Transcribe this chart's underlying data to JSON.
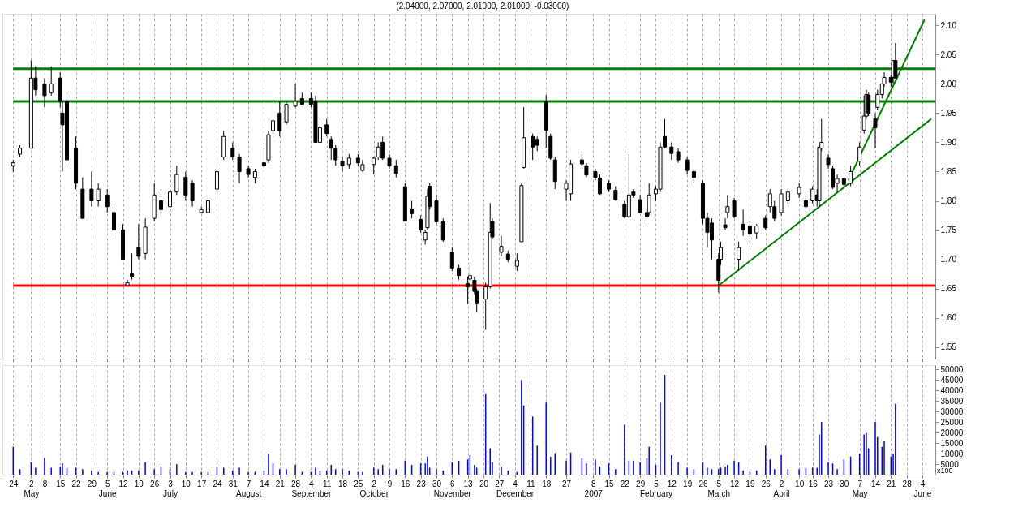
{
  "chart_data": [
    {
      "type": "candlestick",
      "title": "(2.04000, 2.07000, 2.01000, 2.01000, -0.03000)",
      "color": "#000000",
      "grid": "x",
      "tick_labels": "y",
      "xlim": [
        "2006-04-21",
        "2007-06-08"
      ],
      "ylim": [
        1.53,
        2.12
      ],
      "yticks": [
        1.55,
        {
          "value": 1.6,
          "label": "1.60"
        },
        1.65,
        {
          "value": 1.7,
          "label": "1.70"
        },
        1.75,
        {
          "value": 1.8,
          "label": "1.80"
        },
        1.85,
        {
          "value": 1.9,
          "label": "1.90"
        },
        1.95,
        {
          "value": 2.0,
          "label": "2.00"
        },
        2.05,
        {
          "value": 2.1,
          "label": "2.10"
        }
      ],
      "x": [
        "2006-04-24",
        "2006-04-27",
        "2006-05-02",
        "2006-05-04",
        "2006-05-08",
        "2006-05-11",
        "2006-05-15",
        "2006-05-16",
        "2006-05-18",
        "2006-05-22",
        "2006-05-25",
        "2006-05-29",
        "2006-06-01",
        "2006-06-05",
        "2006-06-08",
        "2006-06-12",
        "2006-06-14",
        "2006-06-16",
        "2006-06-19",
        "2006-06-22",
        "2006-06-26",
        "2006-06-29",
        "2006-07-03",
        "2006-07-06",
        "2006-07-10",
        "2006-07-13",
        "2006-07-17",
        "2006-07-20",
        "2006-07-24",
        "2006-07-27",
        "2006-07-31",
        "2006-08-03",
        "2006-08-07",
        "2006-08-10",
        "2006-08-14",
        "2006-08-16",
        "2006-08-18",
        "2006-08-21",
        "2006-08-24",
        "2006-08-28",
        "2006-08-31",
        "2006-09-04",
        "2006-09-06",
        "2006-09-08",
        "2006-09-11",
        "2006-09-13",
        "2006-09-15",
        "2006-09-18",
        "2006-09-21",
        "2006-09-25",
        "2006-09-27",
        "2006-10-02",
        "2006-10-04",
        "2006-10-06",
        "2006-10-09",
        "2006-10-12",
        "2006-10-16",
        "2006-10-19",
        "2006-10-23",
        "2006-10-25",
        "2006-10-26",
        "2006-10-27",
        "2006-10-30",
        "2006-11-02",
        "2006-11-06",
        "2006-11-09",
        "2006-11-13",
        "2006-11-14",
        "2006-11-16",
        "2006-11-17",
        "2006-11-21",
        "2006-11-23",
        "2006-11-24",
        "2006-11-28",
        "2006-12-01",
        "2006-12-05",
        "2006-12-07",
        "2006-12-08",
        "2006-12-12",
        "2006-12-14",
        "2006-12-18",
        "2006-12-20",
        "2006-12-22",
        "2006-12-27",
        "2006-12-29",
        "2007-01-03",
        "2007-01-05",
        "2007-01-09",
        "2007-01-11",
        "2007-01-15",
        "2007-01-18",
        "2007-01-22",
        "2007-01-24",
        "2007-01-26",
        "2007-01-29",
        "2007-02-01",
        "2007-02-02",
        "2007-02-05",
        "2007-02-07",
        "2007-02-09",
        "2007-02-12",
        "2007-02-15",
        "2007-02-19",
        "2007-02-22",
        "2007-02-26",
        "2007-02-28",
        "2007-03-02",
        "2007-03-05",
        "2007-03-06",
        "2007-03-08",
        "2007-03-09",
        "2007-03-12",
        "2007-03-14",
        "2007-03-16",
        "2007-03-19",
        "2007-03-22",
        "2007-03-26",
        "2007-03-28",
        "2007-03-30",
        "2007-04-02",
        "2007-04-05",
        "2007-04-10",
        "2007-04-13",
        "2007-04-16",
        "2007-04-18",
        "2007-04-19",
        "2007-04-20",
        "2007-04-23",
        "2007-04-25",
        "2007-04-27",
        "2007-04-30",
        "2007-05-03",
        "2007-05-07",
        "2007-05-09",
        "2007-05-10",
        "2007-05-11",
        "2007-05-14",
        "2007-05-15",
        "2007-05-17",
        "2007-05-18",
        "2007-05-21",
        "2007-05-22",
        "2007-05-23"
      ],
      "ohlc": [
        [
          1.86,
          1.87,
          1.85,
          1.865
        ],
        [
          1.88,
          1.895,
          1.875,
          1.89
        ],
        [
          1.89,
          2.04,
          1.89,
          2.01
        ],
        [
          2.01,
          2.03,
          1.98,
          1.99
        ],
        [
          2.0,
          2.01,
          1.96,
          1.98
        ],
        [
          1.985,
          2.03,
          1.98,
          2.0
        ],
        [
          2.01,
          2.02,
          1.96,
          1.97
        ],
        [
          1.95,
          1.97,
          1.85,
          1.93
        ],
        [
          1.97,
          1.98,
          1.86,
          1.87
        ],
        [
          1.89,
          1.91,
          1.82,
          1.83
        ],
        [
          1.82,
          1.84,
          1.77,
          1.77
        ],
        [
          1.82,
          1.85,
          1.79,
          1.8
        ],
        [
          1.8,
          1.83,
          1.79,
          1.82
        ],
        [
          1.81,
          1.82,
          1.78,
          1.79
        ],
        [
          1.78,
          1.79,
          1.74,
          1.75
        ],
        [
          1.75,
          1.76,
          1.7,
          1.7
        ],
        [
          1.655,
          1.665,
          1.655,
          1.66
        ],
        [
          1.675,
          1.71,
          1.665,
          1.67
        ],
        [
          1.72,
          1.76,
          1.7,
          1.705
        ],
        [
          1.71,
          1.77,
          1.7,
          1.755
        ],
        [
          1.77,
          1.83,
          1.765,
          1.81
        ],
        [
          1.8,
          1.82,
          1.78,
          1.785
        ],
        [
          1.79,
          1.83,
          1.78,
          1.815
        ],
        [
          1.815,
          1.86,
          1.81,
          1.845
        ],
        [
          1.84,
          1.85,
          1.8,
          1.81
        ],
        [
          1.83,
          1.835,
          1.79,
          1.8
        ],
        [
          1.78,
          1.79,
          1.78,
          1.785
        ],
        [
          1.78,
          1.81,
          1.78,
          1.8
        ],
        [
          1.82,
          1.86,
          1.81,
          1.85
        ],
        [
          1.875,
          1.92,
          1.87,
          1.91
        ],
        [
          1.89,
          1.9,
          1.87,
          1.875
        ],
        [
          1.875,
          1.88,
          1.83,
          1.85
        ],
        [
          1.855,
          1.86,
          1.84,
          1.845
        ],
        [
          1.84,
          1.855,
          1.83,
          1.85
        ],
        [
          1.865,
          1.89,
          1.855,
          1.86
        ],
        [
          1.87,
          1.92,
          1.865,
          1.913
        ],
        [
          1.92,
          1.97,
          1.91,
          1.937
        ],
        [
          1.95,
          1.97,
          1.91,
          1.92
        ],
        [
          1.935,
          1.97,
          1.93,
          1.965
        ],
        [
          1.962,
          2.0,
          1.96,
          1.97
        ],
        [
          1.975,
          1.985,
          1.965,
          1.965
        ],
        [
          1.975,
          1.985,
          1.96,
          1.965
        ],
        [
          1.97,
          1.98,
          1.9,
          1.9
        ],
        [
          1.9,
          1.935,
          1.9,
          1.925
        ],
        [
          1.93,
          1.94,
          1.91,
          1.915
        ],
        [
          1.905,
          1.91,
          1.87,
          1.89
        ],
        [
          1.89,
          1.895,
          1.86,
          1.87
        ],
        [
          1.868,
          1.875,
          1.85,
          1.86
        ],
        [
          1.862,
          1.88,
          1.855,
          1.873
        ],
        [
          1.873,
          1.88,
          1.86,
          1.865
        ],
        [
          1.852,
          1.87,
          1.85,
          1.862
        ],
        [
          1.862,
          1.875,
          1.845,
          1.873
        ],
        [
          1.875,
          1.9,
          1.87,
          1.892
        ],
        [
          1.9,
          1.91,
          1.87,
          1.873
        ],
        [
          1.873,
          1.88,
          1.855,
          1.86
        ],
        [
          1.86,
          1.87,
          1.84,
          1.847
        ],
        [
          1.824,
          1.83,
          1.765,
          1.765
        ],
        [
          1.786,
          1.8,
          1.77,
          1.778
        ],
        [
          1.768,
          1.775,
          1.745,
          1.75
        ],
        [
          1.733,
          1.75,
          1.725,
          1.746
        ],
        [
          1.754,
          1.82,
          1.75,
          1.808
        ],
        [
          1.825,
          1.83,
          1.785,
          1.79
        ],
        [
          1.8,
          1.81,
          1.76,
          1.764
        ],
        [
          1.764,
          1.77,
          1.73,
          1.733
        ],
        [
          1.712,
          1.72,
          1.68,
          1.685
        ],
        [
          1.685,
          1.69,
          1.665,
          1.672
        ],
        [
          1.658,
          1.67,
          1.623,
          1.653
        ],
        [
          1.666,
          1.69,
          1.655,
          1.672
        ],
        [
          1.664,
          1.67,
          1.64,
          1.645
        ],
        [
          1.645,
          1.65,
          1.61,
          1.624
        ],
        [
          1.632,
          1.66,
          1.579,
          1.653
        ],
        [
          1.653,
          1.796,
          1.65,
          1.746
        ],
        [
          1.765,
          1.77,
          1.735,
          1.738
        ],
        [
          1.712,
          1.74,
          1.705,
          1.722
        ],
        [
          1.709,
          1.715,
          1.695,
          1.7
        ],
        [
          1.688,
          1.71,
          1.68,
          1.698
        ],
        [
          1.73,
          1.83,
          1.73,
          1.826
        ],
        [
          1.857,
          1.96,
          1.855,
          1.908
        ],
        [
          1.91,
          1.915,
          1.87,
          1.892
        ],
        [
          1.905,
          1.91,
          1.885,
          1.895
        ],
        [
          1.969,
          1.981,
          1.89,
          1.921
        ],
        [
          1.91,
          1.915,
          1.87,
          1.873
        ],
        [
          1.87,
          1.875,
          1.82,
          1.833
        ],
        [
          1.82,
          1.835,
          1.8,
          1.83
        ],
        [
          1.812,
          1.87,
          1.8,
          1.863
        ],
        [
          1.87,
          1.88,
          1.86,
          1.863
        ],
        [
          1.86,
          1.865,
          1.84,
          1.844
        ],
        [
          1.85,
          1.855,
          1.835,
          1.84
        ],
        [
          1.839,
          1.845,
          1.81,
          1.812
        ],
        [
          1.83,
          1.835,
          1.815,
          1.82
        ],
        [
          1.818,
          1.825,
          1.8,
          1.802
        ],
        [
          1.794,
          1.8,
          1.77,
          1.773
        ],
        [
          1.773,
          1.88,
          1.77,
          1.81
        ],
        [
          1.815,
          1.82,
          1.805,
          1.81
        ],
        [
          1.802,
          1.81,
          1.78,
          1.78
        ],
        [
          1.78,
          1.785,
          1.765,
          1.773
        ],
        [
          1.78,
          1.83,
          1.775,
          1.81
        ],
        [
          1.812,
          1.825,
          1.8,
          1.82
        ],
        [
          1.82,
          1.9,
          1.815,
          1.892
        ],
        [
          1.91,
          1.94,
          1.89,
          1.892
        ],
        [
          1.892,
          1.9,
          1.87,
          1.881
        ],
        [
          1.884,
          1.89,
          1.865,
          1.87
        ],
        [
          1.87,
          1.875,
          1.845,
          1.852
        ],
        [
          1.85,
          1.855,
          1.83,
          1.84
        ],
        [
          1.83,
          1.835,
          1.76,
          1.77
        ],
        [
          1.77,
          1.78,
          1.72,
          1.746
        ],
        [
          1.762,
          1.77,
          1.7,
          1.733
        ],
        [
          1.7,
          1.71,
          1.643,
          1.664
        ],
        [
          1.7,
          1.73,
          1.69,
          1.72
        ],
        [
          1.759,
          1.77,
          1.75,
          1.754
        ],
        [
          1.78,
          1.81,
          1.77,
          1.79
        ],
        [
          1.8,
          1.805,
          1.77,
          1.773
        ],
        [
          1.7,
          1.73,
          1.68,
          1.72
        ],
        [
          1.76,
          1.785,
          1.74,
          1.75
        ],
        [
          1.757,
          1.765,
          1.73,
          1.743
        ],
        [
          1.745,
          1.76,
          1.735,
          1.757
        ],
        [
          1.77,
          1.775,
          1.75,
          1.754
        ],
        [
          1.79,
          1.82,
          1.78,
          1.812
        ],
        [
          1.79,
          1.8,
          1.765,
          1.77
        ],
        [
          1.78,
          1.82,
          1.775,
          1.812
        ],
        [
          1.8,
          1.82,
          1.795,
          1.815
        ],
        [
          1.812,
          1.83,
          1.805,
          1.823
        ],
        [
          1.8,
          1.81,
          1.78,
          1.79
        ],
        [
          1.8,
          1.825,
          1.795,
          1.82
        ],
        [
          1.81,
          1.82,
          1.79,
          1.8
        ],
        [
          1.8,
          1.895,
          1.79,
          1.892
        ],
        [
          1.89,
          1.94,
          1.885,
          1.9
        ],
        [
          1.873,
          1.88,
          1.855,
          1.862
        ],
        [
          1.855,
          1.86,
          1.82,
          1.823
        ],
        [
          1.83,
          1.845,
          1.815,
          1.838
        ],
        [
          1.838,
          1.84,
          1.82,
          1.828
        ],
        [
          1.83,
          1.86,
          1.825,
          1.85
        ],
        [
          1.868,
          1.9,
          1.86,
          1.892
        ],
        [
          1.921,
          1.98,
          1.915,
          1.945
        ],
        [
          1.945,
          1.99,
          1.94,
          1.982
        ],
        [
          1.981,
          1.985,
          1.945,
          1.95
        ],
        [
          1.94,
          1.95,
          1.89,
          1.925
        ],
        [
          1.96,
          1.99,
          1.955,
          1.982
        ],
        [
          1.982,
          2.0,
          1.975,
          2.0
        ],
        [
          2.0,
          2.02,
          1.995,
          2.011
        ],
        [
          2.011,
          2.015,
          1.995,
          2.003
        ],
        [
          2.011,
          2.04,
          2.0,
          2.04
        ],
        [
          2.04,
          2.07,
          2.01,
          2.01
        ]
      ],
      "series": [
        {
          "type": "line",
          "color": "#008000",
          "x": [
            "2007-03-05",
            "2007-06-08"
          ],
          "values": [
            1.655,
            1.94
          ]
        },
        {
          "type": "line",
          "color": "#008000",
          "x": [
            "2007-05-02",
            "2007-06-05"
          ],
          "values": [
            1.835,
            2.11
          ]
        }
      ],
      "ref_lines": [
        {
          "axis": "y",
          "value": 2.026,
          "color": "#008000"
        },
        {
          "axis": "y",
          "value": 1.97,
          "color": "#008000"
        },
        {
          "axis": "y",
          "value": 1.655,
          "color": "#ff0000"
        }
      ]
    },
    {
      "type": "bar",
      "color": "#0000ff",
      "grid": "x",
      "xlim": [
        "2006-04-21",
        "2007-06-08"
      ],
      "ylim": [
        0,
        52000
      ],
      "yticks": [
        5000,
        10000,
        15000,
        20000,
        25000,
        30000,
        35000,
        40000,
        45000,
        50000
      ],
      "annotations": [
        "x100"
      ],
      "xticks": [
        {
          "value": "2006-04-24",
          "label": "24"
        },
        {
          "value": "2006-05-02",
          "label": "2\nMay"
        },
        {
          "value": "2006-05-08",
          "label": "8"
        },
        {
          "value": "2006-05-15",
          "label": "15"
        },
        {
          "value": "2006-05-22",
          "label": "22"
        },
        {
          "value": "2006-05-29",
          "label": "29"
        },
        {
          "value": "2006-06-05",
          "label": "5\nJune"
        },
        {
          "value": "2006-06-12",
          "label": "12"
        },
        {
          "value": "2006-06-19",
          "label": "19"
        },
        {
          "value": "2006-06-26",
          "label": "26"
        },
        {
          "value": "2006-07-03",
          "label": "3\nJuly"
        },
        {
          "value": "2006-07-10",
          "label": "10"
        },
        {
          "value": "2006-07-17",
          "label": "17"
        },
        {
          "value": "2006-07-24",
          "label": "24"
        },
        {
          "value": "2006-07-31",
          "label": "31"
        },
        {
          "value": "2006-08-07",
          "label": "7\nAugust"
        },
        {
          "value": "2006-08-14",
          "label": "14"
        },
        {
          "value": "2006-08-21",
          "label": "21"
        },
        {
          "value": "2006-08-28",
          "label": "28"
        },
        {
          "value": "2006-09-04",
          "label": "4\nSeptember"
        },
        {
          "value": "2006-09-11",
          "label": "11"
        },
        {
          "value": "2006-09-18",
          "label": "18"
        },
        {
          "value": "2006-09-25",
          "label": "25"
        },
        {
          "value": "2006-10-02",
          "label": "2\nOctober"
        },
        {
          "value": "2006-10-09",
          "label": "9"
        },
        {
          "value": "2006-10-16",
          "label": "16"
        },
        {
          "value": "2006-10-23",
          "label": "23"
        },
        {
          "value": "2006-10-30",
          "label": "30"
        },
        {
          "value": "2006-11-06",
          "label": "6\nNovember"
        },
        {
          "value": "2006-11-13",
          "label": "13"
        },
        {
          "value": "2006-11-20",
          "label": "20"
        },
        {
          "value": "2006-11-27",
          "label": "27"
        },
        {
          "value": "2006-12-04",
          "label": "4\nDecember"
        },
        {
          "value": "2006-12-11",
          "label": "11"
        },
        {
          "value": "2006-12-18",
          "label": "18"
        },
        {
          "value": "2006-12-27",
          "label": "27"
        },
        {
          "value": "2007-01-08",
          "label": "8\n2007"
        },
        {
          "value": "2007-01-15",
          "label": "15"
        },
        {
          "value": "2007-01-22",
          "label": "22"
        },
        {
          "value": "2007-01-29",
          "label": "29"
        },
        {
          "value": "2007-02-05",
          "label": "5\nFebruary"
        },
        {
          "value": "2007-02-12",
          "label": "12"
        },
        {
          "value": "2007-02-19",
          "label": "19"
        },
        {
          "value": "2007-02-26",
          "label": "26"
        },
        {
          "value": "2007-03-05",
          "label": "5\nMarch"
        },
        {
          "value": "2007-03-12",
          "label": "12"
        },
        {
          "value": "2007-03-19",
          "label": "19"
        },
        {
          "value": "2007-03-26",
          "label": "26"
        },
        {
          "value": "2007-04-02",
          "label": "2\nApril"
        },
        {
          "value": "2007-04-10",
          "label": "10"
        },
        {
          "value": "2007-04-16",
          "label": "16"
        },
        {
          "value": "2007-04-23",
          "label": "23"
        },
        {
          "value": "2007-04-30",
          "label": "30"
        },
        {
          "value": "2007-05-07",
          "label": "7\nMay"
        },
        {
          "value": "2007-05-14",
          "label": "14"
        },
        {
          "value": "2007-05-21",
          "label": "21"
        },
        {
          "value": "2007-05-28",
          "label": "28"
        },
        {
          "value": "2007-06-04",
          "label": "4\nJune"
        }
      ],
      "x": [
        "2006-04-24",
        "2006-04-27",
        "2006-05-02",
        "2006-05-04",
        "2006-05-08",
        "2006-05-11",
        "2006-05-15",
        "2006-05-16",
        "2006-05-18",
        "2006-05-22",
        "2006-05-25",
        "2006-05-29",
        "2006-06-01",
        "2006-06-05",
        "2006-06-08",
        "2006-06-12",
        "2006-06-14",
        "2006-06-16",
        "2006-06-19",
        "2006-06-22",
        "2006-06-26",
        "2006-06-29",
        "2006-07-03",
        "2006-07-06",
        "2006-07-10",
        "2006-07-13",
        "2006-07-17",
        "2006-07-20",
        "2006-07-24",
        "2006-07-27",
        "2006-07-31",
        "2006-08-03",
        "2006-08-07",
        "2006-08-10",
        "2006-08-14",
        "2006-08-16",
        "2006-08-18",
        "2006-08-21",
        "2006-08-24",
        "2006-08-28",
        "2006-08-31",
        "2006-09-04",
        "2006-09-06",
        "2006-09-08",
        "2006-09-11",
        "2006-09-13",
        "2006-09-15",
        "2006-09-18",
        "2006-09-21",
        "2006-09-25",
        "2006-09-27",
        "2006-10-02",
        "2006-10-04",
        "2006-10-06",
        "2006-10-09",
        "2006-10-12",
        "2006-10-16",
        "2006-10-19",
        "2006-10-23",
        "2006-10-25",
        "2006-10-26",
        "2006-10-27",
        "2006-10-30",
        "2006-11-02",
        "2006-11-06",
        "2006-11-09",
        "2006-11-13",
        "2006-11-14",
        "2006-11-16",
        "2006-11-17",
        "2006-11-21",
        "2006-11-23",
        "2006-11-24",
        "2006-11-28",
        "2006-12-01",
        "2006-12-05",
        "2006-12-07",
        "2006-12-08",
        "2006-12-12",
        "2006-12-14",
        "2006-12-18",
        "2006-12-20",
        "2006-12-22",
        "2006-12-27",
        "2006-12-29",
        "2007-01-03",
        "2007-01-05",
        "2007-01-09",
        "2007-01-11",
        "2007-01-15",
        "2007-01-18",
        "2007-01-22",
        "2007-01-24",
        "2007-01-26",
        "2007-01-29",
        "2007-02-01",
        "2007-02-02",
        "2007-02-05",
        "2007-02-07",
        "2007-02-09",
        "2007-02-12",
        "2007-02-15",
        "2007-02-19",
        "2007-02-22",
        "2007-02-26",
        "2007-02-28",
        "2007-03-02",
        "2007-03-05",
        "2007-03-06",
        "2007-03-08",
        "2007-03-09",
        "2007-03-12",
        "2007-03-14",
        "2007-03-16",
        "2007-03-19",
        "2007-03-22",
        "2007-03-26",
        "2007-03-28",
        "2007-03-30",
        "2007-04-02",
        "2007-04-05",
        "2007-04-10",
        "2007-04-13",
        "2007-04-16",
        "2007-04-18",
        "2007-04-19",
        "2007-04-20",
        "2007-04-23",
        "2007-04-25",
        "2007-04-27",
        "2007-04-30",
        "2007-05-03",
        "2007-05-07",
        "2007-05-09",
        "2007-05-10",
        "2007-05-11",
        "2007-05-14",
        "2007-05-15",
        "2007-05-17",
        "2007-05-18",
        "2007-05-21",
        "2007-05-22",
        "2007-05-23"
      ],
      "values": [
        13200,
        2600,
        5900,
        3300,
        7900,
        3300,
        3900,
        5300,
        3300,
        3300,
        2600,
        2000,
        1300,
        1300,
        1300,
        1300,
        2000,
        2000,
        2000,
        5900,
        2600,
        3900,
        2600,
        4900,
        1300,
        1300,
        1300,
        1300,
        3900,
        3300,
        2000,
        3300,
        1300,
        1300,
        2000,
        9900,
        5300,
        2600,
        2600,
        4600,
        1300,
        1300,
        3300,
        2000,
        2000,
        4600,
        2600,
        2600,
        2000,
        1300,
        1300,
        3300,
        2600,
        4600,
        2600,
        2600,
        6600,
        4600,
        5300,
        5300,
        8600,
        3300,
        2600,
        2000,
        5900,
        6600,
        7200,
        9200,
        4600,
        3300,
        38200,
        12500,
        5900,
        3900,
        2000,
        1300,
        45000,
        32900,
        27600,
        13800,
        34200,
        8500,
        10200,
        6600,
        10500,
        7900,
        5300,
        7200,
        3900,
        5300,
        2600,
        23700,
        6600,
        6600,
        5900,
        7900,
        13200,
        4600,
        34200,
        47400,
        9200,
        5900,
        3300,
        2600,
        5900,
        3300,
        2600,
        2600,
        3300,
        3900,
        4600,
        6600,
        5900,
        2000,
        1300,
        2000,
        13800,
        7200,
        2600,
        9200,
        2600,
        2600,
        3300,
        3300,
        3300,
        19100,
        25000,
        5900,
        5300,
        2600,
        7200,
        8600,
        9900,
        19100,
        19700,
        12500,
        25000,
        17800,
        13200,
        15800,
        8600,
        9900,
        33600
      ]
    }
  ]
}
